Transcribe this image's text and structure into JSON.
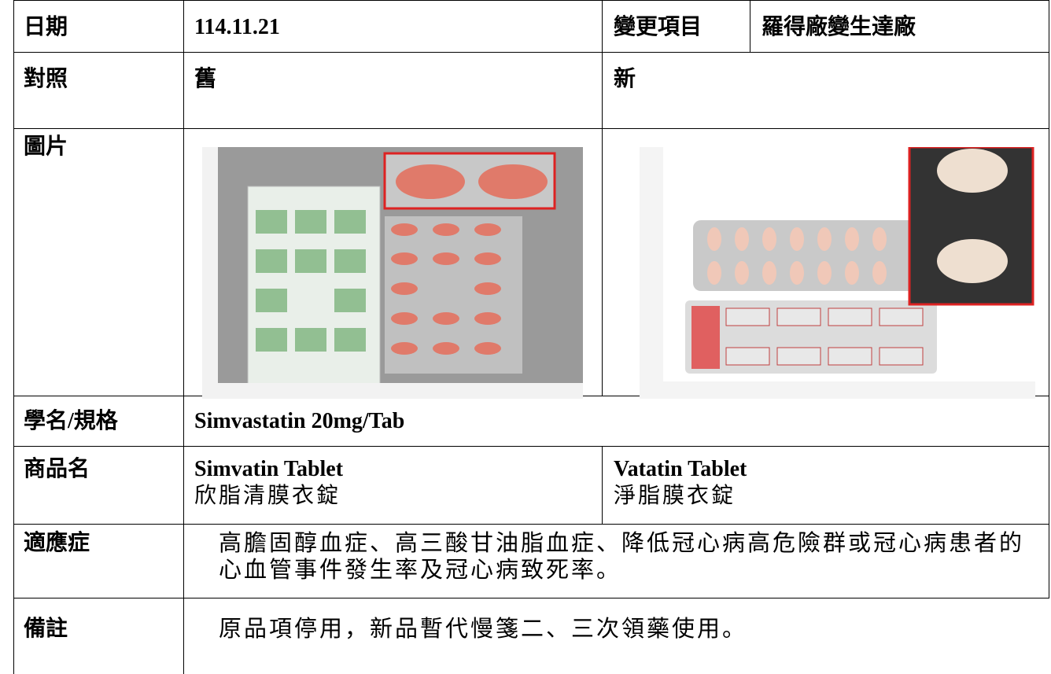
{
  "table": {
    "rows": [
      [
        "日期",
        "114.11.21",
        "變更項目",
        "羅得廠變生達廠"
      ],
      [
        "對照",
        "舊",
        "新"
      ],
      [
        "圖片"
      ],
      [
        "學名/規格",
        "Simvastatin 20mg/Tab"
      ],
      [
        "商品名",
        "Simvatin Tablet",
        "欣脂清膜衣錠",
        "Vatatin Tablet",
        "淨脂膜衣錠"
      ],
      [
        "適應症",
        "高膽固醇血症、高三酸甘油脂血症、降低冠心病高危險群或冠心病患者的心血管事件發生率及冠心病致死率。"
      ],
      [
        "備註",
        "原品項停用，新品暫代慢箋二、三次領藥使用。"
      ]
    ]
  }
}
